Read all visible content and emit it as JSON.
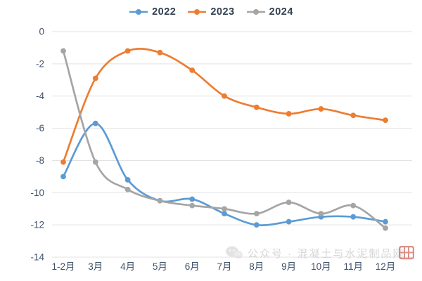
{
  "legend": {
    "items": [
      {
        "label": "2022",
        "color": "#5B9BD5"
      },
      {
        "label": "2023",
        "color": "#ED7D31"
      },
      {
        "label": "2024",
        "color": "#A5A5A5"
      }
    ]
  },
  "watermark": {
    "text": "公众号 · 混凝土与水泥制品网"
  },
  "chart_data": {
    "type": "line",
    "smooth": true,
    "grid": "horizontal-only",
    "legend_position": "top-center",
    "categories": [
      "1-2月",
      "3月",
      "4月",
      "5月",
      "6月",
      "7月",
      "8月",
      "9月",
      "10月",
      "11月",
      "12月"
    ],
    "series": [
      {
        "name": "2022",
        "color": "#5B9BD5",
        "values": [
          -9.0,
          -5.7,
          -9.2,
          -10.5,
          -10.4,
          -11.3,
          -12.0,
          -11.8,
          -11.5,
          -11.5,
          -11.8
        ]
      },
      {
        "name": "2023",
        "color": "#ED7D31",
        "values": [
          -8.1,
          -2.9,
          -1.2,
          -1.3,
          -2.4,
          -4.0,
          -4.7,
          -5.1,
          -4.8,
          -5.2,
          -5.5
        ]
      },
      {
        "name": "2024",
        "color": "#A5A5A5",
        "values": [
          -1.2,
          -8.1,
          -9.8,
          -10.5,
          -10.8,
          -11.0,
          -11.3,
          -10.6,
          -11.3,
          -10.8,
          -12.2
        ]
      }
    ],
    "ylim": [
      -14,
      0
    ],
    "yticks": [
      "0",
      "-2",
      "-4",
      "-6",
      "-8",
      "-10",
      "-12",
      "-14"
    ],
    "xlabel": "",
    "ylabel": "",
    "title": "",
    "axis_text_color": "#3f506b",
    "grid_color": "#e3e3e3"
  }
}
